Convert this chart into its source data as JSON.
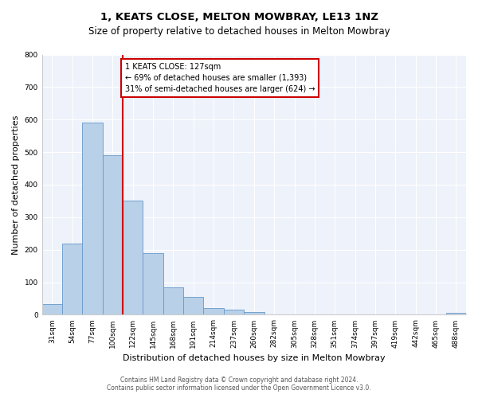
{
  "title": "1, KEATS CLOSE, MELTON MOWBRAY, LE13 1NZ",
  "subtitle": "Size of property relative to detached houses in Melton Mowbray",
  "xlabel": "Distribution of detached houses by size in Melton Mowbray",
  "ylabel": "Number of detached properties",
  "bin_labels": [
    "31sqm",
    "54sqm",
    "77sqm",
    "100sqm",
    "122sqm",
    "145sqm",
    "168sqm",
    "191sqm",
    "214sqm",
    "237sqm",
    "260sqm",
    "282sqm",
    "305sqm",
    "328sqm",
    "351sqm",
    "374sqm",
    "397sqm",
    "419sqm",
    "442sqm",
    "465sqm",
    "488sqm"
  ],
  "bar_values": [
    33,
    220,
    590,
    490,
    350,
    190,
    85,
    55,
    20,
    15,
    8,
    0,
    0,
    0,
    0,
    0,
    0,
    0,
    0,
    0,
    7
  ],
  "bar_color": "#b8d0e8",
  "bar_edgecolor": "#6699cc",
  "bar_linewidth": 0.6,
  "vline_x_index": 4,
  "vline_color": "#cc0000",
  "annotation_title": "1 KEATS CLOSE: 127sqm",
  "annotation_line1": "← 69% of detached houses are smaller (1,393)",
  "annotation_line2": "31% of semi-detached houses are larger (624) →",
  "annotation_box_edgecolor": "#cc0000",
  "ylim": [
    0,
    800
  ],
  "yticks": [
    0,
    100,
    200,
    300,
    400,
    500,
    600,
    700,
    800
  ],
  "footer_line1": "Contains HM Land Registry data © Crown copyright and database right 2024.",
  "footer_line2": "Contains public sector information licensed under the Open Government Licence v3.0.",
  "bg_color": "#ffffff",
  "plot_bg_color": "#eef2fa"
}
